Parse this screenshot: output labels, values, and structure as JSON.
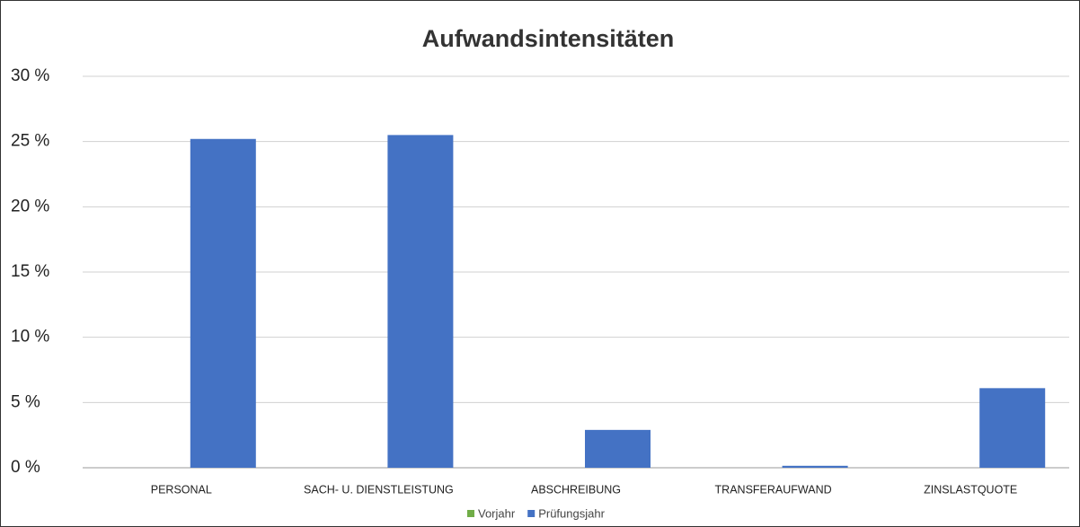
{
  "chart_data": {
    "type": "bar",
    "title": "Aufwandsintensitäten",
    "categories": [
      "PERSONAL",
      "SACH- U. DIENSTLEISTUNG",
      "ABSCHREIBUNG",
      "TRANSFERAUFWAND",
      "ZINSLASTQUOTE"
    ],
    "series": [
      {
        "name": "Vorjahr",
        "color": "#70ad47",
        "values": [
          null,
          null,
          null,
          null,
          null
        ]
      },
      {
        "name": "Prüfungsjahr",
        "color": "#4472c4",
        "values": [
          25.2,
          25.5,
          2.9,
          0.15,
          6.1
        ]
      }
    ],
    "ylim": [
      0,
      30
    ],
    "yticks": [
      {
        "value": 0,
        "label": "0 %"
      },
      {
        "value": 5,
        "label": "5 %"
      },
      {
        "value": 10,
        "label": "10 %"
      },
      {
        "value": 15,
        "label": "15 %"
      },
      {
        "value": 20,
        "label": "20 %"
      },
      {
        "value": 25,
        "label": "25 %"
      },
      {
        "value": 30,
        "label": "30 %"
      }
    ],
    "grid": true,
    "legend": "bottom"
  }
}
